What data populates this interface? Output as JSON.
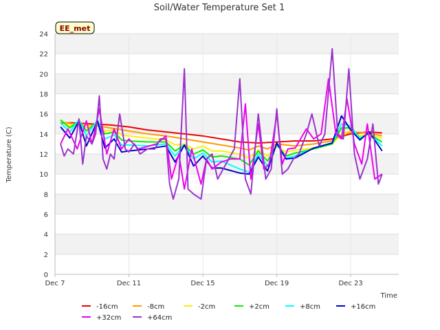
{
  "chart_data": {
    "type": "line",
    "title": "Soil/Water Temperature Set 1",
    "xlabel": "Time",
    "ylabel": "Temperature (C)",
    "station_tag": "EE_met",
    "x_unit": "day of December",
    "xlim": [
      7,
      25.6
    ],
    "ylim": [
      0,
      24
    ],
    "y_ticks": [
      0,
      2,
      4,
      6,
      8,
      10,
      12,
      14,
      16,
      18,
      20,
      22,
      24
    ],
    "x_ticks": [
      {
        "label": "Dec 7",
        "value": 7
      },
      {
        "label": "Dec 11",
        "value": 11
      },
      {
        "label": "Dec 15",
        "value": 15
      },
      {
        "label": "Dec 19",
        "value": 19
      },
      {
        "label": "Dec 23",
        "value": 23
      }
    ],
    "grid": true,
    "legend_position": "bottom",
    "series": [
      {
        "name": "-16cm",
        "color": "#ee0000",
        "x": [
          7.3,
          8,
          9,
          10,
          11,
          12,
          13,
          14,
          15,
          16,
          17,
          18,
          19,
          20,
          21,
          22,
          23,
          24,
          24.7
        ],
        "y": [
          15.1,
          15.1,
          15.0,
          14.9,
          14.7,
          14.4,
          14.2,
          14.0,
          13.8,
          13.5,
          13.2,
          13.1,
          13.2,
          13.3,
          13.3,
          13.5,
          14.0,
          14.2,
          14.1
        ]
      },
      {
        "name": "-8cm",
        "color": "#ff9900",
        "x": [
          7.3,
          8,
          9,
          10,
          11,
          12,
          13,
          14,
          15,
          16,
          17,
          17.5,
          18,
          18.5,
          19,
          20,
          21,
          22,
          23,
          24,
          24.7
        ],
        "y": [
          15.2,
          15.0,
          14.9,
          14.6,
          14.3,
          14.0,
          13.8,
          13.5,
          13.2,
          12.9,
          12.6,
          12.4,
          12.8,
          12.5,
          13.0,
          12.8,
          13.0,
          13.3,
          14.2,
          14.1,
          13.8
        ]
      },
      {
        "name": "-2cm",
        "color": "#ffee00",
        "x": [
          7.3,
          7.8,
          8.3,
          8.7,
          9.3,
          9.7,
          10.2,
          10.6,
          11,
          12,
          13,
          13.5,
          14,
          14.5,
          15,
          15.5,
          16,
          17,
          17.5,
          18,
          18.5,
          19,
          19.5,
          20,
          21,
          22,
          22.5,
          23,
          23.5,
          24,
          24.7
        ],
        "y": [
          15.3,
          14.8,
          15.2,
          14.6,
          15.0,
          14.3,
          14.4,
          13.9,
          13.8,
          13.6,
          13.4,
          12.9,
          13.0,
          12.5,
          12.8,
          12.3,
          12.3,
          12.0,
          11.6,
          12.4,
          11.8,
          12.8,
          12.2,
          12.4,
          12.6,
          13.0,
          14.0,
          14.3,
          13.8,
          14.0,
          13.6
        ]
      },
      {
        "name": "+2cm",
        "color": "#00ee00",
        "x": [
          7.3,
          7.8,
          8.3,
          8.7,
          9.3,
          9.7,
          10.2,
          10.6,
          11,
          12,
          13,
          13.5,
          14,
          14.5,
          15,
          15.5,
          16,
          17,
          17.5,
          18,
          18.5,
          19,
          19.5,
          20,
          21,
          22,
          22.5,
          23,
          23.5,
          24,
          24.7
        ],
        "y": [
          15.4,
          14.6,
          15.3,
          14.3,
          15.2,
          14.0,
          14.2,
          13.4,
          13.3,
          13.2,
          13.2,
          12.3,
          12.9,
          12.0,
          12.4,
          11.7,
          11.8,
          11.5,
          10.9,
          12.3,
          11.3,
          12.9,
          11.8,
          12.1,
          12.5,
          13.0,
          14.6,
          14.6,
          13.6,
          14.0,
          13.2
        ]
      },
      {
        "name": "+8cm",
        "color": "#00ffff",
        "x": [
          7.3,
          7.8,
          8.3,
          8.7,
          9.3,
          9.7,
          10.2,
          10.6,
          11,
          12,
          13,
          13.5,
          14,
          14.5,
          15,
          15.5,
          16,
          17,
          17.5,
          18,
          18.5,
          19,
          19.5,
          20,
          21,
          22,
          22.5,
          23,
          23.5,
          24,
          24.7
        ],
        "y": [
          15.1,
          14.2,
          15.4,
          13.8,
          15.4,
          13.5,
          13.9,
          12.9,
          12.9,
          12.8,
          13.0,
          11.8,
          12.9,
          11.5,
          12.1,
          11.2,
          11.3,
          10.5,
          10.2,
          12.0,
          10.8,
          13.0,
          11.6,
          11.8,
          12.6,
          13.1,
          15.0,
          14.8,
          13.5,
          14.1,
          12.8
        ]
      },
      {
        "name": "+16cm",
        "color": "#0000cc",
        "x": [
          7.3,
          7.8,
          8.3,
          8.7,
          9.3,
          9.7,
          10.2,
          10.6,
          11,
          12,
          13,
          13.5,
          14,
          14.5,
          15,
          15.5,
          16,
          17,
          17.5,
          18,
          18.5,
          19,
          19.5,
          20,
          21,
          22,
          22.5,
          23,
          23.5,
          24,
          24.7
        ],
        "y": [
          14.7,
          13.6,
          15.3,
          12.8,
          15.3,
          12.6,
          13.5,
          12.2,
          12.3,
          12.5,
          12.8,
          11.2,
          12.9,
          10.8,
          11.8,
          10.6,
          10.6,
          10.1,
          10.0,
          11.7,
          10.3,
          13.1,
          11.5,
          11.6,
          12.6,
          13.1,
          15.8,
          14.4,
          13.4,
          14.2,
          12.3
        ]
      },
      {
        "name": "+32cm",
        "color": "#ee00ee",
        "x": [
          7.3,
          7.7,
          8.2,
          8.7,
          9.0,
          9.4,
          9.8,
          10.2,
          10.6,
          11.0,
          11.5,
          12.5,
          13.0,
          13.3,
          13.7,
          14.0,
          14.4,
          14.9,
          15.2,
          15.5,
          16.0,
          16.5,
          17.0,
          17.3,
          17.6,
          18.0,
          18.3,
          18.6,
          19.0,
          19.3,
          19.6,
          20.0,
          20.6,
          21.0,
          21.4,
          21.8,
          22.2,
          22.5,
          22.8,
          23.2,
          23.6,
          23.9,
          24.3,
          24.7
        ],
        "y": [
          13.0,
          14.5,
          12.5,
          15.3,
          13.0,
          16.5,
          12.0,
          14.5,
          12.5,
          13.5,
          12.5,
          13.0,
          13.8,
          9.5,
          12.0,
          8.5,
          12.5,
          9.0,
          11.5,
          10.5,
          11.2,
          11.5,
          11.5,
          17.0,
          9.5,
          15.0,
          10.5,
          11.0,
          16.0,
          11.0,
          12.5,
          12.6,
          14.5,
          13.5,
          14.0,
          19.5,
          14.0,
          13.5,
          17.5,
          13.0,
          11.0,
          15.0,
          9.5,
          10.0
        ]
      },
      {
        "name": "+64cm",
        "color": "#9933cc",
        "x": [
          7.3,
          7.5,
          7.7,
          8.0,
          8.3,
          8.5,
          8.7,
          9.0,
          9.2,
          9.4,
          9.6,
          9.8,
          10.0,
          10.2,
          10.5,
          10.8,
          11.0,
          11.3,
          11.6,
          12.0,
          12.4,
          12.7,
          13.0,
          13.2,
          13.4,
          13.7,
          14.0,
          14.2,
          14.5,
          14.9,
          15.2,
          15.5,
          15.8,
          16.1,
          16.4,
          16.7,
          17.0,
          17.3,
          17.6,
          18.0,
          18.4,
          18.7,
          19.0,
          19.3,
          19.6,
          19.9,
          20.2,
          20.6,
          20.9,
          21.3,
          21.6,
          22.0,
          22.3,
          22.6,
          22.9,
          23.2,
          23.5,
          23.9,
          24.2,
          24.5,
          24.7
        ],
        "y": [
          13.0,
          11.8,
          12.5,
          12.0,
          15.5,
          11.0,
          13.8,
          13.0,
          14.0,
          17.8,
          11.5,
          10.5,
          12.0,
          11.5,
          16.0,
          12.5,
          12.2,
          13.0,
          12.0,
          12.5,
          12.5,
          13.5,
          13.5,
          9.0,
          7.5,
          9.5,
          20.5,
          8.5,
          8.0,
          7.5,
          11.5,
          12.0,
          9.5,
          10.5,
          11.5,
          12.5,
          19.5,
          9.5,
          8.0,
          16.0,
          9.5,
          10.5,
          16.5,
          10.0,
          10.5,
          11.5,
          12.0,
          14.0,
          16.0,
          12.8,
          14.0,
          22.5,
          14.0,
          13.5,
          20.5,
          12.0,
          9.5,
          11.5,
          15.0,
          9.0,
          10.0
        ]
      }
    ]
  }
}
